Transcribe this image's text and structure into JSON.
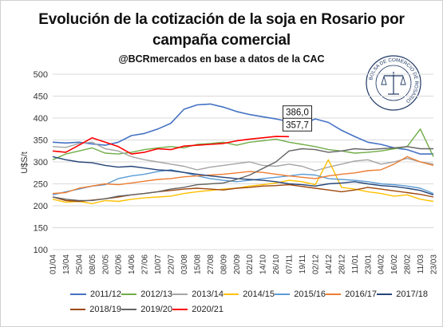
{
  "title_line1": "Evolución de la cotización de la soja en Rosario por",
  "title_line2": "campaña comercial",
  "subtitle": "@BCRmercados en base a datos de la CAC",
  "seal_text": "BOLSA DE COMERCIO DE ROSARIO",
  "chart_data": {
    "type": "line",
    "title": "Evolución de la cotización de la soja en Rosario por campaña comercial",
    "ylabel": "U$S/t",
    "xlabel": "",
    "ylim": [
      100,
      500
    ],
    "yticks": [
      100,
      150,
      200,
      250,
      300,
      350,
      400,
      450,
      500
    ],
    "grid": true,
    "legend_position": "bottom",
    "categories": [
      "01/04",
      "13/04",
      "25/04",
      "08/05",
      "20/05",
      "02/06",
      "14/06",
      "27/06",
      "10/07",
      "22/07",
      "03/08",
      "15/08",
      "27/08",
      "08/09",
      "20/09",
      "02/10",
      "14/10",
      "26/10",
      "07/11",
      "19/11",
      "02/12",
      "14/12",
      "28/12",
      "11/01",
      "23/01",
      "04/02",
      "16/02",
      "28/02",
      "11/03",
      "23/03"
    ],
    "annotations": [
      {
        "text": "386,0",
        "series": "2011/12",
        "x_index": 19,
        "value": 386.0
      },
      {
        "text": "357,7",
        "series": "2020/21",
        "x_index": 19,
        "value": 357.7
      }
    ],
    "series": [
      {
        "name": "2011/12",
        "color": "#4472c4",
        "width": 1.6,
        "values": [
          345,
          343,
          345,
          341,
          338,
          345,
          360,
          365,
          375,
          388,
          420,
          430,
          432,
          425,
          415,
          408,
          403,
          398,
          392,
          386,
          398,
          390,
          372,
          358,
          345,
          340,
          332,
          328,
          318,
          318
        ]
      },
      {
        "name": "2012/13",
        "color": "#70ad47",
        "width": 1.4,
        "values": [
          305,
          318,
          325,
          332,
          320,
          318,
          322,
          328,
          332,
          335,
          332,
          340,
          342,
          345,
          338,
          345,
          348,
          352,
          345,
          340,
          335,
          328,
          325,
          320,
          322,
          325,
          330,
          335,
          375,
          312
        ]
      },
      {
        "name": "2013/14",
        "color": "#a5a5a5",
        "width": 1.4,
        "values": [
          335,
          333,
          342,
          345,
          330,
          325,
          312,
          305,
          300,
          295,
          290,
          282,
          288,
          292,
          296,
          300,
          292,
          290,
          295,
          290,
          280,
          288,
          295,
          302,
          305,
          295,
          300,
          308,
          300,
          295
        ]
      },
      {
        "name": "2014/15",
        "color": "#ffc000",
        "width": 1.4,
        "values": [
          215,
          208,
          210,
          205,
          212,
          210,
          215,
          218,
          220,
          222,
          228,
          232,
          235,
          238,
          240,
          245,
          248,
          252,
          258,
          255,
          248,
          305,
          242,
          238,
          232,
          228,
          222,
          225,
          215,
          210
        ]
      },
      {
        "name": "2015/16",
        "color": "#5b9bd5",
        "width": 1.4,
        "values": [
          225,
          232,
          238,
          245,
          248,
          262,
          268,
          272,
          278,
          282,
          276,
          268,
          262,
          258,
          255,
          258,
          262,
          265,
          268,
          272,
          270,
          262,
          260,
          258,
          255,
          250,
          248,
          245,
          240,
          228
        ]
      },
      {
        "name": "2016/17",
        "color": "#ed7d31",
        "width": 1.4,
        "values": [
          228,
          230,
          240,
          245,
          250,
          248,
          252,
          256,
          260,
          262,
          266,
          268,
          270,
          272,
          275,
          278,
          276,
          272,
          268,
          265,
          262,
          268,
          272,
          275,
          280,
          282,
          295,
          312,
          300,
          292
        ]
      },
      {
        "name": "2017/18",
        "color": "#264478",
        "width": 1.4,
        "values": [
          312,
          305,
          300,
          298,
          292,
          288,
          290,
          286,
          282,
          280,
          276,
          272,
          268,
          265,
          262,
          260,
          258,
          255,
          250,
          248,
          245,
          250,
          252,
          255,
          250,
          246,
          244,
          240,
          235,
          225
        ]
      },
      {
        "name": "2018/19",
        "color": "#9e480e",
        "width": 1.4,
        "values": [
          220,
          212,
          210,
          213,
          216,
          220,
          225,
          228,
          232,
          235,
          238,
          240,
          238,
          236,
          240,
          242,
          245,
          246,
          248,
          244,
          240,
          236,
          232,
          236,
          242,
          238,
          234,
          230,
          226,
          220
        ]
      },
      {
        "name": "2019/20",
        "color": "#636363",
        "width": 1.4,
        "values": [
          220,
          215,
          212,
          212,
          216,
          222,
          225,
          228,
          232,
          238,
          242,
          248,
          250,
          252,
          260,
          270,
          285,
          300,
          325,
          330,
          328,
          322,
          325,
          330,
          328,
          330,
          332,
          335,
          330,
          330
        ]
      },
      {
        "name": "2020/21",
        "color": "#ff0000",
        "width": 1.6,
        "values": [
          325,
          322,
          338,
          355,
          345,
          335,
          318,
          322,
          330,
          328,
          336,
          338,
          340,
          342,
          348,
          352,
          355,
          358,
          357.7,
          null,
          null,
          null,
          null,
          null,
          null,
          null,
          null,
          null,
          null,
          null
        ]
      }
    ]
  }
}
